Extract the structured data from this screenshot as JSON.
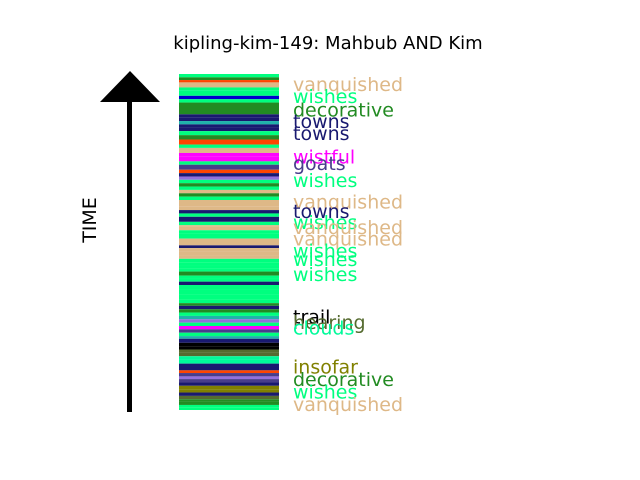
{
  "chart_data": {
    "type": "bar",
    "title": "kipling-kim-149: Mahbub AND Kim",
    "ylabel": "TIME",
    "xlabel": "",
    "ylim": [
      0,
      1
    ],
    "grid": false,
    "colors": {
      "vanquished": "#deb887",
      "wishes": "#00ff7f",
      "decorative": "#228b22",
      "towns": "#191970",
      "wistful": "#ff00ff",
      "goats": "#483d8b",
      "trail": "#000000",
      "clouds": "#00fa9a",
      "hearing": "#556b2f",
      "insofar": "#808000",
      "orange": "#ff4500",
      "blue": "#0000cd",
      "teal": "#20b2aa",
      "plum": "#9370db"
    },
    "stripes": [
      {
        "y0": 0.99,
        "y1": 1.0,
        "color": "wishes"
      },
      {
        "y0": 0.982,
        "y1": 0.99,
        "color": "decorative"
      },
      {
        "y0": 0.975,
        "y1": 0.982,
        "color": "orange"
      },
      {
        "y0": 0.96,
        "y1": 0.975,
        "color": "vanquished"
      },
      {
        "y0": 0.95,
        "y1": 0.96,
        "color": "wishes"
      },
      {
        "y0": 0.935,
        "y1": 0.95,
        "color": "wishes"
      },
      {
        "y0": 0.925,
        "y1": 0.935,
        "color": "blue"
      },
      {
        "y0": 0.915,
        "y1": 0.925,
        "color": "wishes"
      },
      {
        "y0": 0.88,
        "y1": 0.915,
        "color": "decorative"
      },
      {
        "y0": 0.87,
        "y1": 0.88,
        "color": "towns"
      },
      {
        "y0": 0.86,
        "y1": 0.87,
        "color": "towns"
      },
      {
        "y0": 0.85,
        "y1": 0.86,
        "color": "teal"
      },
      {
        "y0": 0.842,
        "y1": 0.85,
        "color": "towns"
      },
      {
        "y0": 0.83,
        "y1": 0.842,
        "color": "towns"
      },
      {
        "y0": 0.818,
        "y1": 0.83,
        "color": "wishes"
      },
      {
        "y0": 0.805,
        "y1": 0.818,
        "color": "decorative"
      },
      {
        "y0": 0.79,
        "y1": 0.805,
        "color": "orange"
      },
      {
        "y0": 0.78,
        "y1": 0.79,
        "color": "wishes"
      },
      {
        "y0": 0.765,
        "y1": 0.78,
        "color": "vanquished"
      },
      {
        "y0": 0.755,
        "y1": 0.765,
        "color": "wistful"
      },
      {
        "y0": 0.74,
        "y1": 0.755,
        "color": "wistful"
      },
      {
        "y0": 0.73,
        "y1": 0.74,
        "color": "wishes"
      },
      {
        "y0": 0.715,
        "y1": 0.73,
        "color": "goats"
      },
      {
        "y0": 0.705,
        "y1": 0.715,
        "color": "orange"
      },
      {
        "y0": 0.695,
        "y1": 0.705,
        "color": "towns"
      },
      {
        "y0": 0.685,
        "y1": 0.695,
        "color": "plum"
      },
      {
        "y0": 0.675,
        "y1": 0.685,
        "color": "wishes"
      },
      {
        "y0": 0.665,
        "y1": 0.675,
        "color": "decorative"
      },
      {
        "y0": 0.655,
        "y1": 0.665,
        "color": "wishes"
      },
      {
        "y0": 0.645,
        "y1": 0.655,
        "color": "vanquished"
      },
      {
        "y0": 0.635,
        "y1": 0.645,
        "color": "decorative"
      },
      {
        "y0": 0.625,
        "y1": 0.635,
        "color": "wishes"
      },
      {
        "y0": 0.605,
        "y1": 0.625,
        "color": "vanquished"
      },
      {
        "y0": 0.595,
        "y1": 0.605,
        "color": "vanquished"
      },
      {
        "y0": 0.585,
        "y1": 0.595,
        "color": "towns"
      },
      {
        "y0": 0.575,
        "y1": 0.585,
        "color": "wishes"
      },
      {
        "y0": 0.56,
        "y1": 0.575,
        "color": "towns"
      },
      {
        "y0": 0.55,
        "y1": 0.56,
        "color": "wishes"
      },
      {
        "y0": 0.545,
        "y1": 0.55,
        "color": "vanquished"
      },
      {
        "y0": 0.535,
        "y1": 0.545,
        "color": "vanquished"
      },
      {
        "y0": 0.525,
        "y1": 0.535,
        "color": "wishes"
      },
      {
        "y0": 0.51,
        "y1": 0.525,
        "color": "wishes"
      },
      {
        "y0": 0.5,
        "y1": 0.51,
        "color": "vanquished"
      },
      {
        "y0": 0.49,
        "y1": 0.5,
        "color": "vanquished"
      },
      {
        "y0": 0.482,
        "y1": 0.49,
        "color": "towns"
      },
      {
        "y0": 0.472,
        "y1": 0.482,
        "color": "vanquished"
      },
      {
        "y0": 0.46,
        "y1": 0.472,
        "color": "vanquished"
      },
      {
        "y0": 0.45,
        "y1": 0.46,
        "color": "vanquished"
      },
      {
        "y0": 0.44,
        "y1": 0.45,
        "color": "wishes"
      },
      {
        "y0": 0.43,
        "y1": 0.44,
        "color": "wishes"
      },
      {
        "y0": 0.42,
        "y1": 0.43,
        "color": "wishes"
      },
      {
        "y0": 0.412,
        "y1": 0.42,
        "color": "wishes"
      },
      {
        "y0": 0.4,
        "y1": 0.412,
        "color": "decorative"
      },
      {
        "y0": 0.39,
        "y1": 0.4,
        "color": "wishes"
      },
      {
        "y0": 0.382,
        "y1": 0.39,
        "color": "wishes"
      },
      {
        "y0": 0.372,
        "y1": 0.382,
        "color": "towns"
      },
      {
        "y0": 0.36,
        "y1": 0.372,
        "color": "wishes"
      },
      {
        "y0": 0.345,
        "y1": 0.36,
        "color": "wishes"
      },
      {
        "y0": 0.33,
        "y1": 0.345,
        "color": "wishes"
      },
      {
        "y0": 0.318,
        "y1": 0.33,
        "color": "wishes"
      },
      {
        "y0": 0.31,
        "y1": 0.318,
        "color": "decorative"
      },
      {
        "y0": 0.3,
        "y1": 0.31,
        "color": "towns"
      },
      {
        "y0": 0.29,
        "y1": 0.3,
        "color": "decorative"
      },
      {
        "y0": 0.28,
        "y1": 0.29,
        "color": "wishes"
      },
      {
        "y0": 0.27,
        "y1": 0.28,
        "color": "teal"
      },
      {
        "y0": 0.26,
        "y1": 0.27,
        "color": "plum"
      },
      {
        "y0": 0.25,
        "y1": 0.26,
        "color": "wishes"
      },
      {
        "y0": 0.24,
        "y1": 0.25,
        "color": "wistful"
      },
      {
        "y0": 0.23,
        "y1": 0.24,
        "color": "goats"
      },
      {
        "y0": 0.22,
        "y1": 0.23,
        "color": "wishes"
      },
      {
        "y0": 0.212,
        "y1": 0.22,
        "color": "teal"
      },
      {
        "y0": 0.2,
        "y1": 0.212,
        "color": "towns"
      },
      {
        "y0": 0.19,
        "y1": 0.2,
        "color": "trail"
      },
      {
        "y0": 0.18,
        "y1": 0.19,
        "color": "trail"
      },
      {
        "y0": 0.17,
        "y1": 0.18,
        "color": "hearing"
      },
      {
        "y0": 0.16,
        "y1": 0.17,
        "color": "hearing"
      },
      {
        "y0": 0.15,
        "y1": 0.16,
        "color": "clouds"
      },
      {
        "y0": 0.138,
        "y1": 0.15,
        "color": "clouds"
      },
      {
        "y0": 0.128,
        "y1": 0.138,
        "color": "towns"
      },
      {
        "y0": 0.118,
        "y1": 0.128,
        "color": "towns"
      },
      {
        "y0": 0.11,
        "y1": 0.118,
        "color": "orange"
      },
      {
        "y0": 0.1,
        "y1": 0.11,
        "color": "goats"
      },
      {
        "y0": 0.092,
        "y1": 0.1,
        "color": "plum"
      },
      {
        "y0": 0.082,
        "y1": 0.092,
        "color": "goats"
      },
      {
        "y0": 0.072,
        "y1": 0.082,
        "color": "towns"
      },
      {
        "y0": 0.062,
        "y1": 0.072,
        "color": "insofar"
      },
      {
        "y0": 0.052,
        "y1": 0.062,
        "color": "insofar"
      },
      {
        "y0": 0.042,
        "y1": 0.052,
        "color": "towns"
      },
      {
        "y0": 0.032,
        "y1": 0.042,
        "color": "hearing"
      },
      {
        "y0": 0.025,
        "y1": 0.032,
        "color": "decorative"
      },
      {
        "y0": 0.015,
        "y1": 0.025,
        "color": "decorative"
      },
      {
        "y0": 0.008,
        "y1": 0.015,
        "color": "wishes"
      },
      {
        "y0": 0.0,
        "y1": 0.008,
        "color": "wishes"
      }
    ],
    "words": [
      {
        "text": "vanquished",
        "y": 0.97,
        "color": "vanquished"
      },
      {
        "text": "wishes",
        "y": 0.935,
        "color": "wishes"
      },
      {
        "text": "decorative",
        "y": 0.895,
        "color": "decorative"
      },
      {
        "text": "towns",
        "y": 0.86,
        "color": "towns"
      },
      {
        "text": "towns",
        "y": 0.825,
        "color": "towns"
      },
      {
        "text": "wistful",
        "y": 0.755,
        "color": "wistful"
      },
      {
        "text": "goats",
        "y": 0.735,
        "color": "goats"
      },
      {
        "text": "wishes",
        "y": 0.685,
        "color": "wishes"
      },
      {
        "text": "vanquished",
        "y": 0.62,
        "color": "vanquished"
      },
      {
        "text": "towns",
        "y": 0.593,
        "color": "towns"
      },
      {
        "text": "wishes",
        "y": 0.56,
        "color": "wishes"
      },
      {
        "text": "vanquished",
        "y": 0.545,
        "color": "vanquished"
      },
      {
        "text": "vanquished",
        "y": 0.51,
        "color": "vanquished"
      },
      {
        "text": "wishes",
        "y": 0.475,
        "color": "wishes"
      },
      {
        "text": "wishes",
        "y": 0.45,
        "color": "wishes"
      },
      {
        "text": "wishes",
        "y": 0.405,
        "color": "wishes"
      },
      {
        "text": "trail",
        "y": 0.278,
        "color": "trail"
      },
      {
        "text": "hearing",
        "y": 0.262,
        "color": "hearing"
      },
      {
        "text": "clouds",
        "y": 0.245,
        "color": "clouds"
      },
      {
        "text": "insofar",
        "y": 0.13,
        "color": "insofar"
      },
      {
        "text": "decorative",
        "y": 0.093,
        "color": "decorative"
      },
      {
        "text": "wishes",
        "y": 0.055,
        "color": "wishes"
      },
      {
        "text": "vanquished",
        "y": 0.018,
        "color": "vanquished"
      }
    ]
  }
}
